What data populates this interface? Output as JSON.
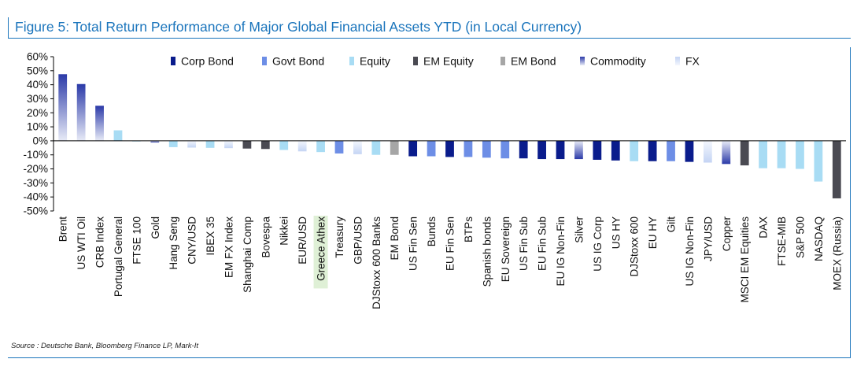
{
  "title": "Figure 5: Total Return Performance of Major Global Financial Assets YTD (in Local Currency)",
  "source": "Source : Deutsche Bank, Bloomberg Finance LP, Mark-It",
  "colors": {
    "Corp Bond": "#0a1c8c",
    "Govt Bond": "#6d8ee6",
    "Equity": "#a8dcf4",
    "EM Equity": "#4a4a52",
    "EM Bond": "#a6a6a6",
    "Commodity": "#2b3aa8",
    "FX": "#c4d4f4",
    "highlight": "#dff0d6",
    "title": "#1b75bc"
  },
  "chart_data": {
    "type": "bar",
    "title": "Figure 5: Total Return Performance of Major Global Financial Assets YTD (in Local Currency)",
    "xlabel": "",
    "ylabel": "",
    "ylim": [
      -50,
      60
    ],
    "yticks": [
      60,
      50,
      40,
      30,
      20,
      10,
      0,
      -10,
      -20,
      -30,
      -40,
      -50
    ],
    "ytick_labels": [
      "60%",
      "50%",
      "40%",
      "30%",
      "20%",
      "10%",
      "0%",
      "-10%",
      "-20%",
      "-30%",
      "-40%",
      "-50%"
    ],
    "legend": [
      "Corp Bond",
      "Govt Bond",
      "Equity",
      "EM Equity",
      "EM Bond",
      "Commodity",
      "FX"
    ],
    "legend_position": "top",
    "highlighted_category": "Greece Athex",
    "categories": [
      "Brent",
      "US WTI Oil",
      "CRB Index",
      "Portugal General",
      "FTSE 100",
      "Gold",
      "Hang Seng",
      "CNY/USD",
      "IBEX 35",
      "EM FX Index",
      "Shanghai Comp",
      "Bovespa",
      "Nikkei",
      "EUR/USD",
      "Greece Athex",
      "Treasury",
      "GBP/USD",
      "DJStoxx 600 Banks",
      "EM Bond",
      "US Fin Sen",
      "Bunds",
      "EU Fin Sen",
      "BTPs",
      "Spanish bonds",
      "EU Sovereign",
      "US Fin Sub",
      "EU Fin Sub",
      "EU IG Non-Fin",
      "Silver",
      "US IG Corp",
      "US HY",
      "DJStoxx 600",
      "EU HY",
      "Gilt",
      "US IG Non-Fin",
      "JPY/USD",
      "Copper",
      "MSCI EM Equities",
      "DAX",
      "FTSE-MIB",
      "S&P 500",
      "NASDAQ",
      "MOEX (Russia)"
    ],
    "values": [
      47.5,
      40.5,
      25,
      7.5,
      -0.3,
      -1.2,
      -4.5,
      -4.8,
      -5,
      -5.2,
      -5.5,
      -5.8,
      -6.5,
      -7.5,
      -8,
      -9,
      -9.5,
      -10,
      -10,
      -11,
      -11,
      -11.5,
      -11.5,
      -12,
      -12.5,
      -12.5,
      -13,
      -13,
      -13,
      -13.5,
      -14,
      -14.5,
      -14.5,
      -14.5,
      -15,
      -15.5,
      -16.5,
      -17.5,
      -19.5,
      -19.5,
      -20,
      -29,
      -41
    ],
    "asset_class": [
      "Commodity",
      "Commodity",
      "Commodity",
      "Equity",
      "Equity",
      "Commodity",
      "Equity",
      "FX",
      "Equity",
      "FX",
      "EM Equity",
      "EM Equity",
      "Equity",
      "FX",
      "Equity",
      "Govt Bond",
      "FX",
      "Equity",
      "EM Bond",
      "Corp Bond",
      "Govt Bond",
      "Corp Bond",
      "Govt Bond",
      "Govt Bond",
      "Govt Bond",
      "Corp Bond",
      "Corp Bond",
      "Corp Bond",
      "Commodity",
      "Corp Bond",
      "Corp Bond",
      "Equity",
      "Corp Bond",
      "Govt Bond",
      "Corp Bond",
      "FX",
      "Commodity",
      "EM Equity",
      "Equity",
      "Equity",
      "Equity",
      "Equity",
      "EM Equity"
    ]
  }
}
